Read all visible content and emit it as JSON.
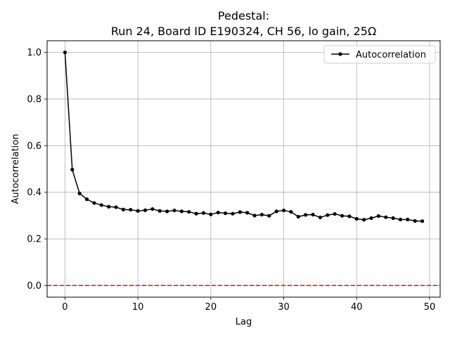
{
  "chart_data": {
    "type": "line",
    "title_line1": "Pedestal:",
    "title_line2": "Run 24, Board ID E190324, CH 56, lo gain, 25Ω",
    "xlabel": "Lag",
    "ylabel": "Autocorrelation",
    "xlim": [
      -2.45,
      51.45
    ],
    "ylim": [
      -0.05,
      1.05
    ],
    "xticks": [
      0,
      10,
      20,
      30,
      40,
      50
    ],
    "yticks": [
      0.0,
      0.2,
      0.4,
      0.6,
      0.8,
      1.0
    ],
    "xtick_labels": [
      "0",
      "10",
      "20",
      "30",
      "40",
      "50"
    ],
    "ytick_labels": [
      "0.0",
      "0.2",
      "0.4",
      "0.6",
      "0.8",
      "1.0"
    ],
    "grid": true,
    "legend_position": "top-right",
    "series": [
      {
        "name": "Autocorrelation",
        "color": "#000000",
        "marker": "dot",
        "x": [
          0,
          1,
          2,
          3,
          4,
          5,
          6,
          7,
          8,
          9,
          10,
          11,
          12,
          13,
          14,
          15,
          16,
          17,
          18,
          19,
          20,
          21,
          22,
          23,
          24,
          25,
          26,
          27,
          28,
          29,
          30,
          31,
          32,
          33,
          34,
          35,
          36,
          37,
          38,
          39,
          40,
          41,
          42,
          43,
          44,
          45,
          46,
          47,
          48,
          49
        ],
        "y": [
          1.0,
          0.497,
          0.395,
          0.37,
          0.354,
          0.345,
          0.338,
          0.336,
          0.326,
          0.325,
          0.32,
          0.323,
          0.328,
          0.32,
          0.318,
          0.322,
          0.318,
          0.316,
          0.308,
          0.311,
          0.305,
          0.313,
          0.31,
          0.308,
          0.315,
          0.312,
          0.3,
          0.304,
          0.299,
          0.318,
          0.322,
          0.316,
          0.295,
          0.303,
          0.304,
          0.292,
          0.302,
          0.307,
          0.299,
          0.297,
          0.286,
          0.282,
          0.289,
          0.298,
          0.293,
          0.289,
          0.283,
          0.283,
          0.277,
          0.276
        ]
      }
    ],
    "reference_line": {
      "y": 0.0,
      "color": "#ff0000",
      "style": "dashed"
    }
  }
}
